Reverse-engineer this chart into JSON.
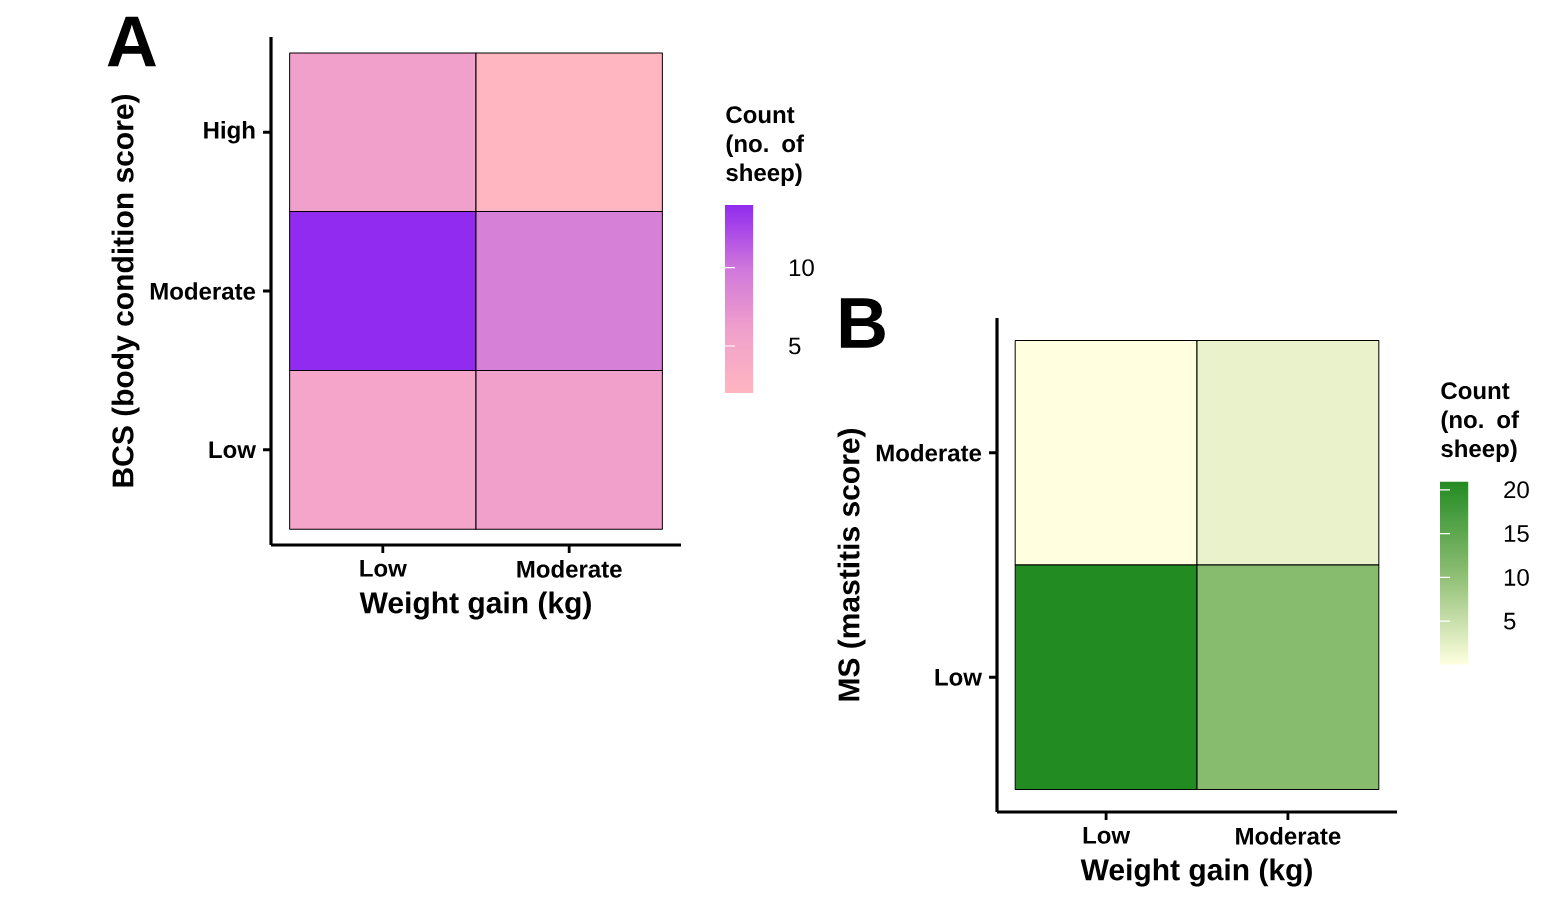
{
  "chart_data": [
    {
      "type": "heatmap",
      "title": "A",
      "xlabel": "Weight gain (kg)",
      "ylabel": "BCS (body condition score)",
      "clabel": "Count (no. of sheep)",
      "categories": [
        "Low",
        "Moderate"
      ],
      "y_categories": [
        "High",
        "Moderate",
        "Low"
      ],
      "cells": [
        [
          6,
          2
        ],
        [
          14,
          9
        ],
        [
          5,
          6
        ]
      ],
      "clim": [
        2,
        14
      ],
      "cticks": [
        5,
        10
      ]
    },
    {
      "type": "heatmap",
      "title": "B",
      "xlabel": "Weight gain (kg)",
      "ylabel": "MS (mastitis score)",
      "clabel": "Count (no. of sheep)",
      "categories": [
        "Low",
        "Moderate"
      ],
      "y_categories": [
        "Moderate",
        "Low"
      ],
      "cells": [
        [
          0,
          2
        ],
        [
          21,
          11
        ]
      ],
      "clim": [
        0,
        21
      ],
      "cticks": [
        5,
        10,
        15,
        20
      ]
    }
  ]
}
